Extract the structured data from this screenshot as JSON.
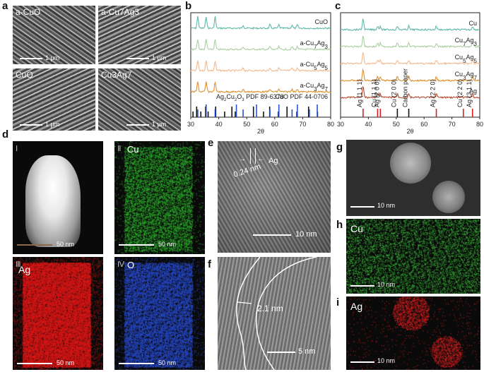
{
  "panel_labels": {
    "a": "a",
    "b": "b",
    "c": "c",
    "d": "d",
    "e": "e",
    "f": "f",
    "g": "g",
    "h": "h",
    "i": "i"
  },
  "sem": [
    {
      "title": "a-CuO",
      "scale": "1 μm"
    },
    {
      "title": "a-Cu7Ag3",
      "scale": "1 μm"
    },
    {
      "title": "CuO",
      "scale": "1 μm"
    },
    {
      "title": "Cu3Ag7",
      "scale": "1 μm"
    }
  ],
  "eds_d": [
    {
      "numeral": "Ⅰ",
      "title": "",
      "scale": "50 nm",
      "color": "#dddddd"
    },
    {
      "numeral": "Ⅱ",
      "title": "Cu",
      "scale": "50 nm",
      "color": "#2fbf2f"
    },
    {
      "numeral": "Ⅲ",
      "title": "Ag",
      "scale": "50 nm",
      "color": "#e01818"
    },
    {
      "numeral": "Ⅳ",
      "title": "O",
      "scale": "50 nm",
      "color": "#2a4fd8"
    }
  ],
  "hrtem_e": {
    "spacing": "0.24 nm",
    "phase": "Ag",
    "scale": "10 nm"
  },
  "hrtem_f": {
    "thickness": "2.1 nm",
    "scale": "5 nm"
  },
  "panel_g": {
    "scale": "10 nm"
  },
  "panel_h": {
    "title": "Cu",
    "scale": "10 nm",
    "color": "#3cc43c"
  },
  "panel_i": {
    "title": "Ag",
    "scale": "10 nm",
    "color": "#e02020"
  },
  "chart_data": [
    {
      "type": "line",
      "xlabel": "2θ",
      "xlim": [
        30,
        80
      ],
      "xticks": [
        30,
        40,
        50,
        60,
        70,
        80
      ],
      "series": [
        {
          "name": "CuO",
          "color": "#5fb8a8"
        },
        {
          "name": "a-Cu7Ag3",
          "color": "#a9cfa0"
        },
        {
          "name": "a-Cu5Ag5",
          "color": "#f2b98e"
        },
        {
          "name": "a-Cu3Ag7",
          "color": "#e0902a"
        }
      ],
      "references": [
        {
          "name": "Ag2Cu2O3 PDF 89-6378",
          "color": "#111111",
          "positions": [
            30.8,
            32.1,
            33.6,
            35.3,
            36.2,
            38.9,
            42.1,
            44.7,
            45.9,
            52.4,
            56.0,
            58.2,
            61.3,
            64.4,
            67.9,
            72.1,
            75.3
          ]
        },
        {
          "name": "CuO PDF 44-0706",
          "color": "#2a52d8",
          "positions": [
            32.5,
            35.5,
            38.7,
            46.3,
            48.7,
            53.5,
            58.3,
            61.5,
            66.2,
            68.1,
            72.4,
            75.2
          ]
        }
      ]
    },
    {
      "type": "line",
      "xlabel": "2θ",
      "xlim": [
        30,
        80
      ],
      "xticks": [
        30,
        40,
        50,
        60,
        70,
        80
      ],
      "series": [
        {
          "name": "Cu",
          "color": "#5fb8a8"
        },
        {
          "name": "Cu7Ag3",
          "color": "#a9cfa0"
        },
        {
          "name": "Cu5Ag5",
          "color": "#f2b98e"
        },
        {
          "name": "Cu3Ag7",
          "color": "#e0902a"
        },
        {
          "name": "Ag",
          "color": "#b5492e"
        }
      ],
      "annotations": [
        {
          "label": "Ag (1 1 1)",
          "x": 38.1,
          "color": "#d82020"
        },
        {
          "label": "Cu (1 1 1)",
          "x": 43.3,
          "color": "#d82020"
        },
        {
          "label": "Ag (2 0 0)",
          "x": 44.3,
          "color": "#d82020"
        },
        {
          "label": "Cu (2 0 0)",
          "x": 50.4,
          "color": "#111111"
        },
        {
          "label": "Carbon paper",
          "x": 54.5,
          "color": "#111111"
        },
        {
          "label": "Ag (2 2 0)",
          "x": 64.4,
          "color": "#d82020"
        },
        {
          "label": "Cu (2 2 0)",
          "x": 74.1,
          "color": "#d82020"
        },
        {
          "label": "Ag (3 1 1)",
          "x": 77.4,
          "color": "#d82020"
        }
      ]
    }
  ]
}
